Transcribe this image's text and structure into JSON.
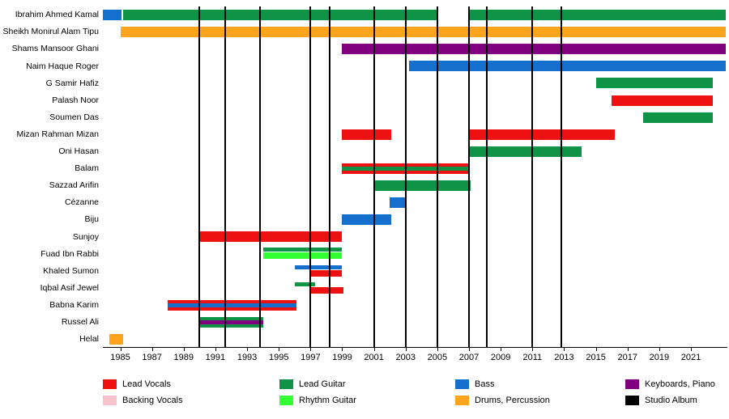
{
  "chart_data": {
    "type": "timeline",
    "description": "Band members timeline (Gantt-style), roles by color, studio albums as vertical black lines",
    "axis": {
      "xmin": 1983.9,
      "xmax": 2023.3,
      "ticks": [
        1985,
        1987,
        1989,
        1991,
        1993,
        1995,
        1997,
        1999,
        2001,
        2003,
        2005,
        2007,
        2009,
        2011,
        2013,
        2015,
        2017,
        2019,
        2021
      ]
    },
    "roles": {
      "lead_vocals": {
        "label": "Lead Vocals",
        "color": "#ee1111"
      },
      "backing_vocals": {
        "label": "Backing Vocals",
        "color": "#f7c2cb"
      },
      "lead_guitar": {
        "label": "Lead Guitar",
        "color": "#0f9447"
      },
      "rhythm_guitar": {
        "label": "Rhythm Guitar",
        "color": "#33ff33"
      },
      "bass": {
        "label": "Bass",
        "color": "#1470cc"
      },
      "drums": {
        "label": "Drums, Percussion",
        "color": "#ffa41c"
      },
      "keyboards": {
        "label": "Keyboards, Piano",
        "color": "#800080"
      },
      "album": {
        "label": "Studio Album",
        "color": "#000000"
      }
    },
    "legend_order": [
      [
        "lead_vocals",
        "lead_guitar",
        "bass",
        "keyboards"
      ],
      [
        "backing_vocals",
        "rhythm_guitar",
        "drums",
        "album"
      ]
    ],
    "album_years": [
      1990,
      1991.6,
      1993.8,
      1997,
      1998.2,
      2001,
      2003,
      2005,
      2007,
      2008.1,
      2011,
      2012.8
    ],
    "members": [
      {
        "name": "Ibrahim Ahmed Kamal",
        "bars": [
          {
            "role": "bass",
            "start": 1983.9,
            "end": 1985.1,
            "pos": "full"
          },
          {
            "role": "lead_guitar",
            "start": 1985.2,
            "end": 2005,
            "pos": "full"
          },
          {
            "role": "lead_guitar",
            "start": 2007,
            "end": 2023.2,
            "pos": "full"
          }
        ]
      },
      {
        "name": "Sheikh Monirul Alam Tipu",
        "bars": [
          {
            "role": "drums",
            "start": 1985,
            "end": 2023.2,
            "pos": "full"
          }
        ]
      },
      {
        "name": "Shams Mansoor Ghani",
        "bars": [
          {
            "role": "keyboards",
            "start": 1999,
            "end": 2023.2,
            "pos": "full"
          }
        ]
      },
      {
        "name": "Naim Haque Roger",
        "bars": [
          {
            "role": "bass",
            "start": 2003.2,
            "end": 2023.2,
            "pos": "full"
          }
        ]
      },
      {
        "name": "G Samir Hafiz",
        "bars": [
          {
            "role": "lead_guitar",
            "start": 2015,
            "end": 2022.4,
            "pos": "full"
          }
        ]
      },
      {
        "name": "Palash Noor",
        "bars": [
          {
            "role": "lead_vocals",
            "start": 2016,
            "end": 2022.4,
            "pos": "full"
          }
        ]
      },
      {
        "name": "Soumen Das",
        "bars": [
          {
            "role": "lead_guitar",
            "start": 2018,
            "end": 2022.4,
            "pos": "full"
          }
        ]
      },
      {
        "name": "Mizan Rahman Mizan",
        "bars": [
          {
            "role": "lead_vocals",
            "start": 1999,
            "end": 2002.1,
            "pos": "full"
          },
          {
            "role": "lead_vocals",
            "start": 2007,
            "end": 2016.2,
            "pos": "full"
          }
        ]
      },
      {
        "name": "Oni Hasan",
        "bars": [
          {
            "role": "lead_guitar",
            "start": 2007,
            "end": 2014.1,
            "pos": "full"
          }
        ]
      },
      {
        "name": "Balam",
        "bars": [
          {
            "role": "lead_vocals",
            "stripe": "lead_guitar",
            "start": 1999,
            "end": 2007,
            "pos": "full"
          }
        ]
      },
      {
        "name": "Sazzad Arifin",
        "bars": [
          {
            "role": "lead_guitar",
            "start": 2001,
            "end": 2007.1,
            "pos": "full"
          }
        ]
      },
      {
        "name": "Cézanne",
        "bars": [
          {
            "role": "bass",
            "start": 2002,
            "end": 2003,
            "pos": "full"
          }
        ]
      },
      {
        "name": "Biju",
        "bars": [
          {
            "role": "bass",
            "start": 1999,
            "end": 2002.1,
            "pos": "full"
          }
        ]
      },
      {
        "name": "Sunjoy",
        "bars": [
          {
            "role": "lead_vocals",
            "start": 1990,
            "end": 1999,
            "pos": "full"
          }
        ]
      },
      {
        "name": "Fuad Ibn Rabbi",
        "bars": [
          {
            "role": "lead_guitar",
            "start": 1994,
            "end": 1999,
            "pos": "upper"
          },
          {
            "role": "rhythm_guitar",
            "start": 1994,
            "end": 1999,
            "pos": "lower"
          }
        ]
      },
      {
        "name": "Khaled Sumon",
        "bars": [
          {
            "role": "bass",
            "start": 1996,
            "end": 1999,
            "pos": "upper"
          },
          {
            "role": "lead_vocals",
            "start": 1997,
            "end": 1999,
            "pos": "lower"
          }
        ]
      },
      {
        "name": "Iqbal Asif Jewel",
        "bars": [
          {
            "role": "lead_guitar",
            "start": 1996,
            "end": 1997.3,
            "pos": "upper"
          },
          {
            "role": "lead_vocals",
            "start": 1997,
            "end": 1999.1,
            "pos": "lower"
          }
        ]
      },
      {
        "name": "Babna Karim",
        "bars": [
          {
            "role": "lead_vocals",
            "stripe": "bass",
            "start": 1988,
            "end": 1996.1,
            "pos": "full"
          }
        ]
      },
      {
        "name": "Russel Ali",
        "bars": [
          {
            "role": "lead_guitar",
            "stripe": "keyboards",
            "start": 1990,
            "end": 1994,
            "pos": "full"
          }
        ]
      },
      {
        "name": "Helal",
        "bars": [
          {
            "role": "drums",
            "start": 1984.3,
            "end": 1985.2,
            "pos": "full"
          }
        ]
      }
    ]
  }
}
